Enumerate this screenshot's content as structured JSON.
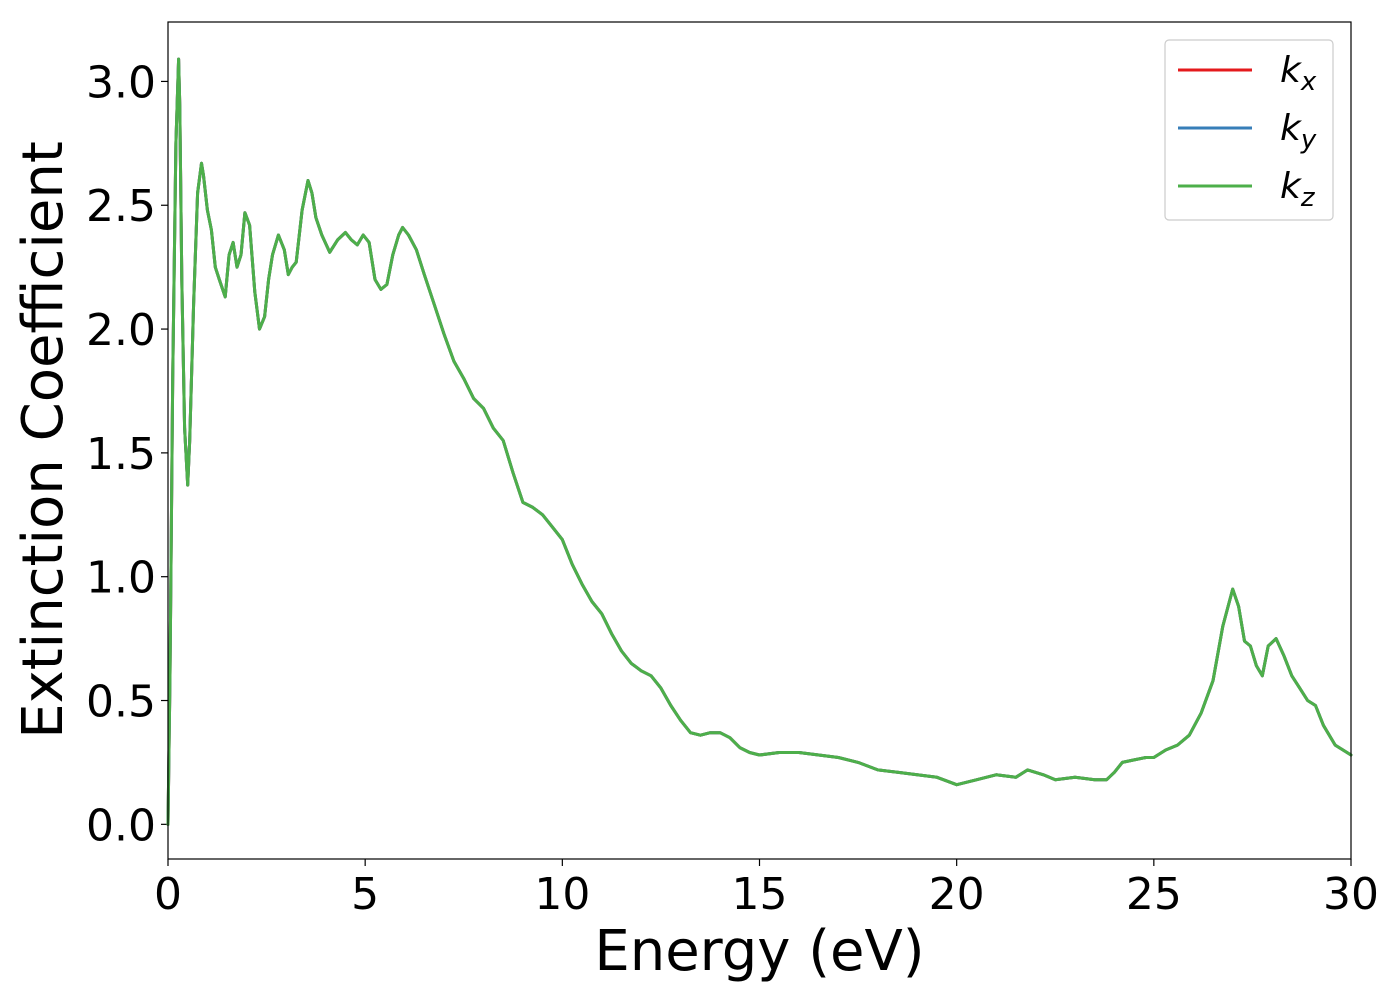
{
  "chart_data": {
    "type": "line",
    "xlabel": "Energy (eV)",
    "ylabel": "Extinction Coefficient",
    "xlim": [
      0,
      30
    ],
    "ylim": [
      -0.14,
      3.24
    ],
    "xticks": [
      "0",
      "5",
      "10",
      "15",
      "20",
      "25",
      "30"
    ],
    "yticks": [
      "0.0",
      "0.5",
      "1.0",
      "1.5",
      "2.0",
      "2.5",
      "3.0"
    ],
    "grid": false,
    "legend_position": "top-right",
    "series": [
      {
        "name": "k",
        "subscript": "x",
        "color": "#e41a1c"
      },
      {
        "name": "k",
        "subscript": "y",
        "color": "#377eb8"
      },
      {
        "name": "k",
        "subscript": "z",
        "color": "#4daf4a"
      }
    ],
    "x": [
      0.0,
      0.05,
      0.12,
      0.2,
      0.27,
      0.3,
      0.35,
      0.42,
      0.5,
      0.55,
      0.65,
      0.75,
      0.85,
      0.9,
      1.0,
      1.1,
      1.2,
      1.3,
      1.45,
      1.55,
      1.65,
      1.75,
      1.85,
      1.95,
      2.07,
      2.2,
      2.32,
      2.45,
      2.55,
      2.65,
      2.8,
      2.95,
      3.05,
      3.15,
      3.25,
      3.4,
      3.55,
      3.65,
      3.75,
      3.9,
      4.1,
      4.3,
      4.5,
      4.65,
      4.8,
      4.95,
      5.1,
      5.25,
      5.4,
      5.55,
      5.7,
      5.85,
      5.95,
      6.1,
      6.3,
      6.5,
      6.75,
      7.0,
      7.25,
      7.5,
      7.75,
      8.0,
      8.25,
      8.5,
      8.75,
      9.0,
      9.25,
      9.5,
      9.75,
      10.0,
      10.25,
      10.5,
      10.75,
      11.0,
      11.25,
      11.5,
      11.75,
      12.0,
      12.25,
      12.5,
      12.75,
      13.0,
      13.25,
      13.5,
      13.75,
      14.0,
      14.25,
      14.5,
      14.75,
      15.0,
      15.5,
      16.0,
      16.5,
      17.0,
      17.5,
      18.0,
      18.5,
      19.0,
      19.5,
      20.0,
      20.5,
      21.0,
      21.5,
      21.8,
      22.2,
      22.5,
      23.0,
      23.5,
      23.8,
      24.0,
      24.2,
      24.5,
      24.8,
      25.0,
      25.3,
      25.6,
      25.9,
      26.2,
      26.5,
      26.75,
      27.0,
      27.15,
      27.3,
      27.45,
      27.6,
      27.75,
      27.9,
      28.1,
      28.3,
      28.5,
      28.7,
      28.9,
      29.1,
      29.3,
      29.6,
      30.0
    ],
    "y": [
      0.0,
      0.6,
      1.8,
      2.75,
      3.09,
      2.9,
      2.2,
      1.6,
      1.37,
      1.55,
      2.1,
      2.55,
      2.67,
      2.62,
      2.48,
      2.4,
      2.25,
      2.2,
      2.13,
      2.3,
      2.35,
      2.25,
      2.3,
      2.47,
      2.42,
      2.15,
      2.0,
      2.05,
      2.2,
      2.3,
      2.38,
      2.32,
      2.22,
      2.25,
      2.27,
      2.48,
      2.6,
      2.55,
      2.45,
      2.38,
      2.31,
      2.36,
      2.39,
      2.36,
      2.34,
      2.38,
      2.35,
      2.2,
      2.16,
      2.18,
      2.3,
      2.38,
      2.41,
      2.38,
      2.32,
      2.22,
      2.1,
      1.98,
      1.87,
      1.8,
      1.72,
      1.68,
      1.6,
      1.55,
      1.42,
      1.3,
      1.28,
      1.25,
      1.2,
      1.15,
      1.05,
      0.97,
      0.9,
      0.85,
      0.77,
      0.7,
      0.65,
      0.62,
      0.6,
      0.55,
      0.48,
      0.42,
      0.37,
      0.36,
      0.37,
      0.37,
      0.35,
      0.31,
      0.29,
      0.28,
      0.29,
      0.29,
      0.28,
      0.27,
      0.25,
      0.22,
      0.21,
      0.2,
      0.19,
      0.16,
      0.18,
      0.2,
      0.19,
      0.22,
      0.2,
      0.18,
      0.19,
      0.18,
      0.18,
      0.21,
      0.25,
      0.26,
      0.27,
      0.27,
      0.3,
      0.32,
      0.36,
      0.45,
      0.58,
      0.8,
      0.95,
      0.88,
      0.74,
      0.72,
      0.64,
      0.6,
      0.72,
      0.75,
      0.68,
      0.6,
      0.55,
      0.5,
      0.48,
      0.4,
      0.32,
      0.28
    ]
  }
}
